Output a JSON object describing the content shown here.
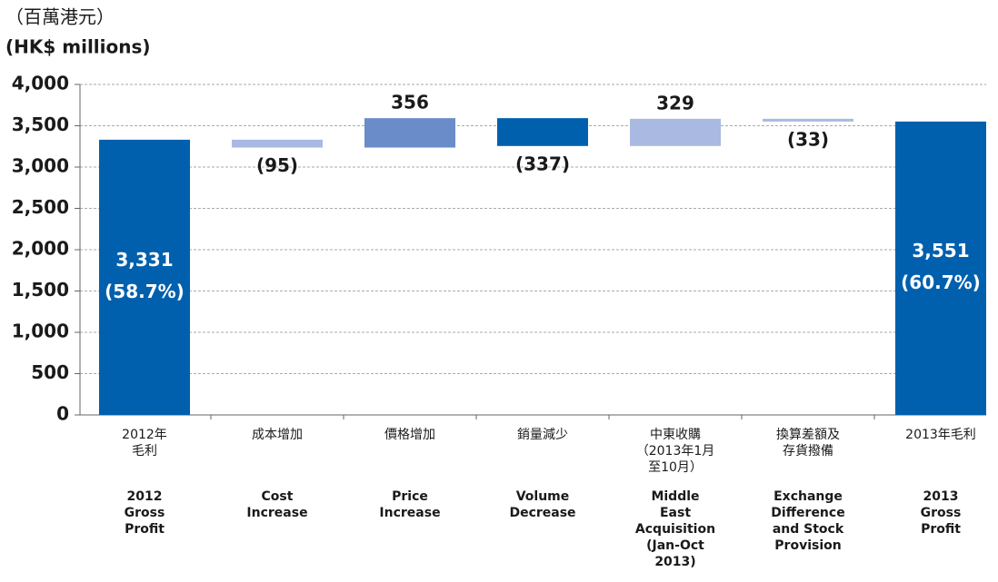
{
  "chart_data": {
    "type": "waterfall",
    "title": "（百萬港元）",
    "subtitle": "(HK$ millions)",
    "categories_zh": [
      [
        "2012年",
        "毛利"
      ],
      [
        "成本增加"
      ],
      [
        "價格增加"
      ],
      [
        "銷量減少"
      ],
      [
        "中東收購",
        "（2013年1月",
        "至10月）"
      ],
      [
        "換算差額及",
        "存貨撥備"
      ],
      [
        "2013年毛利"
      ]
    ],
    "categories": [
      [
        "2012",
        "Gross",
        "Profit"
      ],
      [
        "Cost",
        "Increase"
      ],
      [
        "Price",
        "Increase"
      ],
      [
        "Volume",
        "Decrease"
      ],
      [
        "Middle",
        "East",
        "Acquisition",
        "(Jan-Oct",
        "2013)"
      ],
      [
        "Exchange",
        "Difference",
        "and Stock",
        "Provision"
      ],
      [
        "2013",
        "Gross",
        "Profit"
      ]
    ],
    "values": [
      3331,
      -95,
      356,
      -337,
      329,
      -33,
      3551
    ],
    "value_labels": [
      "3,331",
      "(95)",
      "356",
      "(337)",
      "329",
      "(33)",
      "3,551"
    ],
    "margin_labels": [
      "(58.7%)",
      null,
      null,
      null,
      null,
      null,
      "(60.7%)"
    ],
    "is_total": [
      true,
      false,
      false,
      false,
      false,
      false,
      true
    ],
    "colors": [
      "#0060ae",
      "#a9b9e1",
      "#6a8cc8",
      "#0060ae",
      "#a9b9e1",
      "#a9b9e1",
      "#0060ae"
    ],
    "ylim": [
      0,
      4000
    ],
    "yticks": [
      0,
      500,
      {
        "value": 1000,
        "label": "1,000"
      },
      {
        "value": 1500,
        "label": "1,500"
      },
      {
        "value": 2000,
        "label": "2,000"
      },
      {
        "value": 2500,
        "label": "2,500"
      },
      {
        "value": 3000,
        "label": "3,000"
      },
      {
        "value": 3500,
        "label": "3,500"
      },
      {
        "value": 4000,
        "label": "4,000"
      }
    ],
    "grid": true
  }
}
